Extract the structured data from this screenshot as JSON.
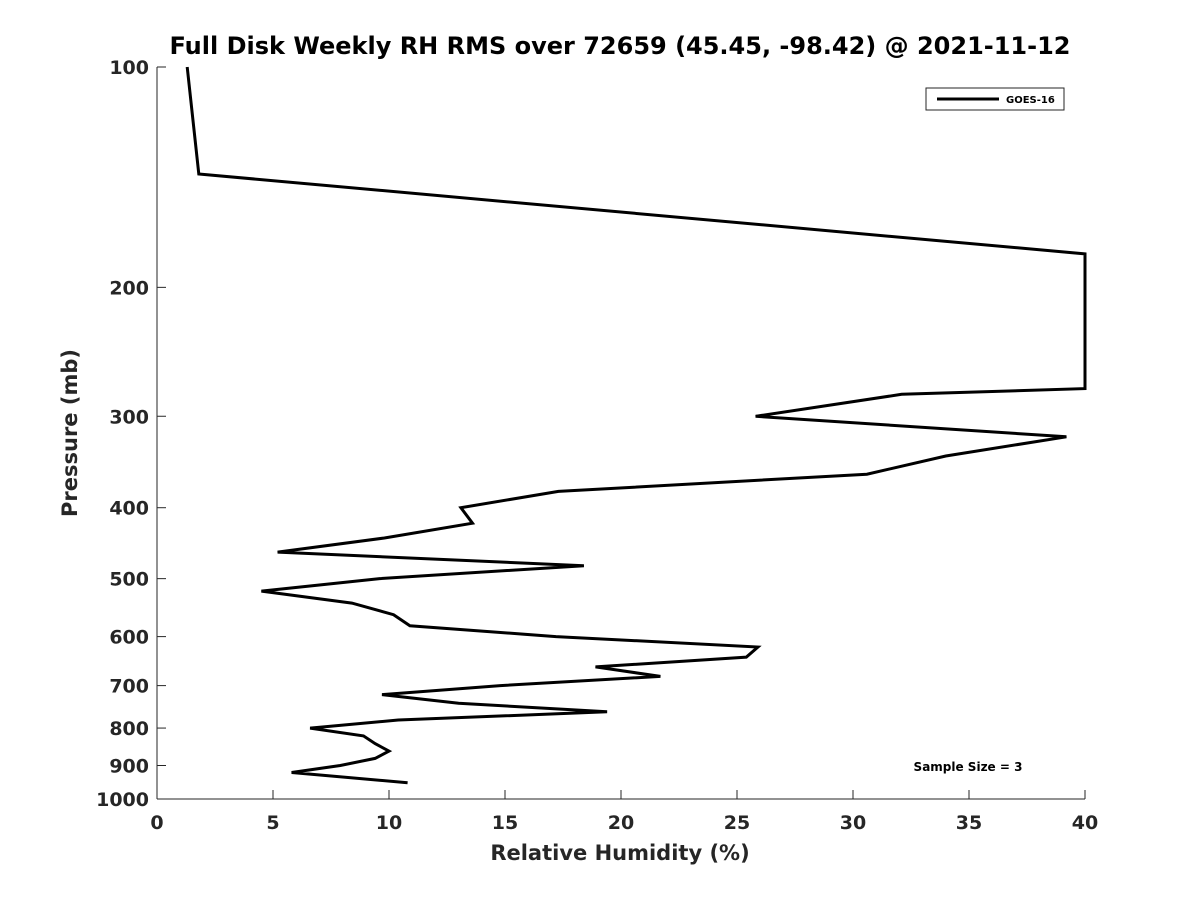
{
  "chart_data": {
    "type": "line",
    "title": "Full Disk Weekly RH RMS over 72659 (45.45, -98.42) @ 2021-11-12",
    "xlabel": "Relative Humidity (%)",
    "ylabel": "Pressure (mb)",
    "xlim": [
      0,
      40
    ],
    "ylim": [
      100,
      1000
    ],
    "yscale": "log",
    "y_reversed": true,
    "grid": false,
    "legend_position": "top-right",
    "x_ticks": [
      0,
      5,
      10,
      15,
      20,
      25,
      30,
      35,
      40
    ],
    "y_ticks": [
      100,
      200,
      300,
      400,
      500,
      600,
      700,
      800,
      900,
      1000
    ],
    "annotation": "Sample Size = 3",
    "series": [
      {
        "name": "GOES-16",
        "color": "#000000",
        "points": [
          {
            "x": 1.3,
            "p": 100
          },
          {
            "x": 1.8,
            "p": 140
          },
          {
            "x": 40.0,
            "p": 180
          },
          {
            "x": 40.0,
            "p": 275
          },
          {
            "x": 32.1,
            "p": 280
          },
          {
            "x": 25.8,
            "p": 300
          },
          {
            "x": 39.2,
            "p": 320
          },
          {
            "x": 34.0,
            "p": 340
          },
          {
            "x": 30.6,
            "p": 360
          },
          {
            "x": 17.3,
            "p": 380
          },
          {
            "x": 13.1,
            "p": 400
          },
          {
            "x": 13.6,
            "p": 420
          },
          {
            "x": 9.8,
            "p": 440
          },
          {
            "x": 5.2,
            "p": 460
          },
          {
            "x": 18.4,
            "p": 480
          },
          {
            "x": 9.6,
            "p": 500
          },
          {
            "x": 4.5,
            "p": 520
          },
          {
            "x": 8.4,
            "p": 540
          },
          {
            "x": 10.2,
            "p": 560
          },
          {
            "x": 10.9,
            "p": 580
          },
          {
            "x": 17.2,
            "p": 600
          },
          {
            "x": 25.9,
            "p": 620
          },
          {
            "x": 25.4,
            "p": 640
          },
          {
            "x": 18.9,
            "p": 660
          },
          {
            "x": 21.7,
            "p": 680
          },
          {
            "x": 14.8,
            "p": 700
          },
          {
            "x": 9.7,
            "p": 720
          },
          {
            "x": 13.0,
            "p": 740
          },
          {
            "x": 19.4,
            "p": 760
          },
          {
            "x": 10.4,
            "p": 780
          },
          {
            "x": 6.6,
            "p": 800
          },
          {
            "x": 8.9,
            "p": 820
          },
          {
            "x": 9.4,
            "p": 840
          },
          {
            "x": 10.0,
            "p": 860
          },
          {
            "x": 9.4,
            "p": 880
          },
          {
            "x": 7.9,
            "p": 900
          },
          {
            "x": 5.8,
            "p": 920
          },
          {
            "x": 10.8,
            "p": 950
          }
        ]
      }
    ]
  }
}
